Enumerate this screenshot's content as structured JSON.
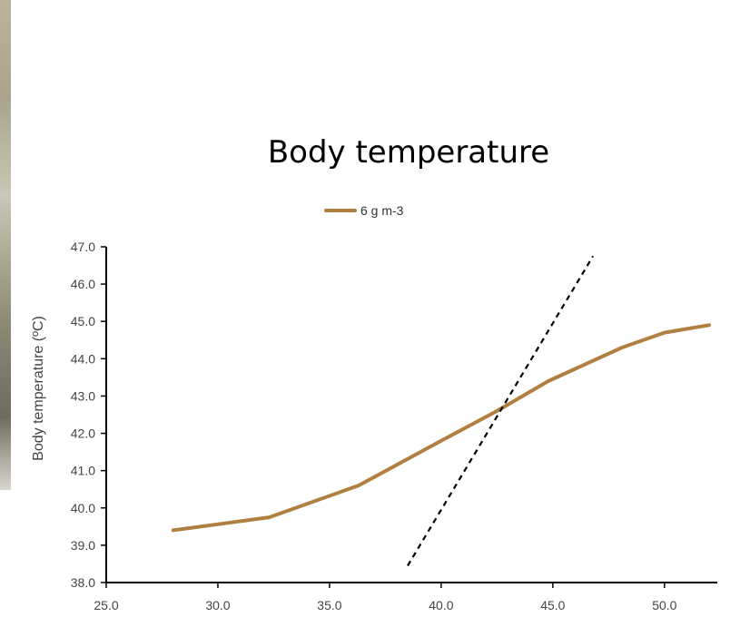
{
  "chart_data": {
    "type": "line",
    "title": "Body temperature",
    "xlabel": "",
    "ylabel": "Body temperature (ºC)",
    "xlim": [
      25,
      52
    ],
    "ylim": [
      38,
      47
    ],
    "x_ticks": [
      "25.0",
      "30.0",
      "35.0",
      "40.0",
      "45.0",
      "50.0"
    ],
    "y_ticks": [
      "38.0",
      "39.0",
      "40.0",
      "41.0",
      "42.0",
      "43.0",
      "44.0",
      "45.0",
      "46.0",
      "47.0"
    ],
    "legend_position": "top",
    "grid": false,
    "series": [
      {
        "name": "6 g m-3",
        "color": "#b08040",
        "style": "solid",
        "x": [
          28,
          32.3,
          36.3,
          40,
          42.5,
          44.8,
          48.1,
          50.0,
          52.0
        ],
        "y": [
          39.4,
          39.75,
          40.6,
          41.8,
          42.6,
          43.4,
          44.3,
          44.7,
          44.9
        ]
      },
      {
        "color": "#000000",
        "style": "dashed",
        "x": [
          38.5,
          46.8
        ],
        "y": [
          38.45,
          46.75
        ]
      }
    ]
  }
}
